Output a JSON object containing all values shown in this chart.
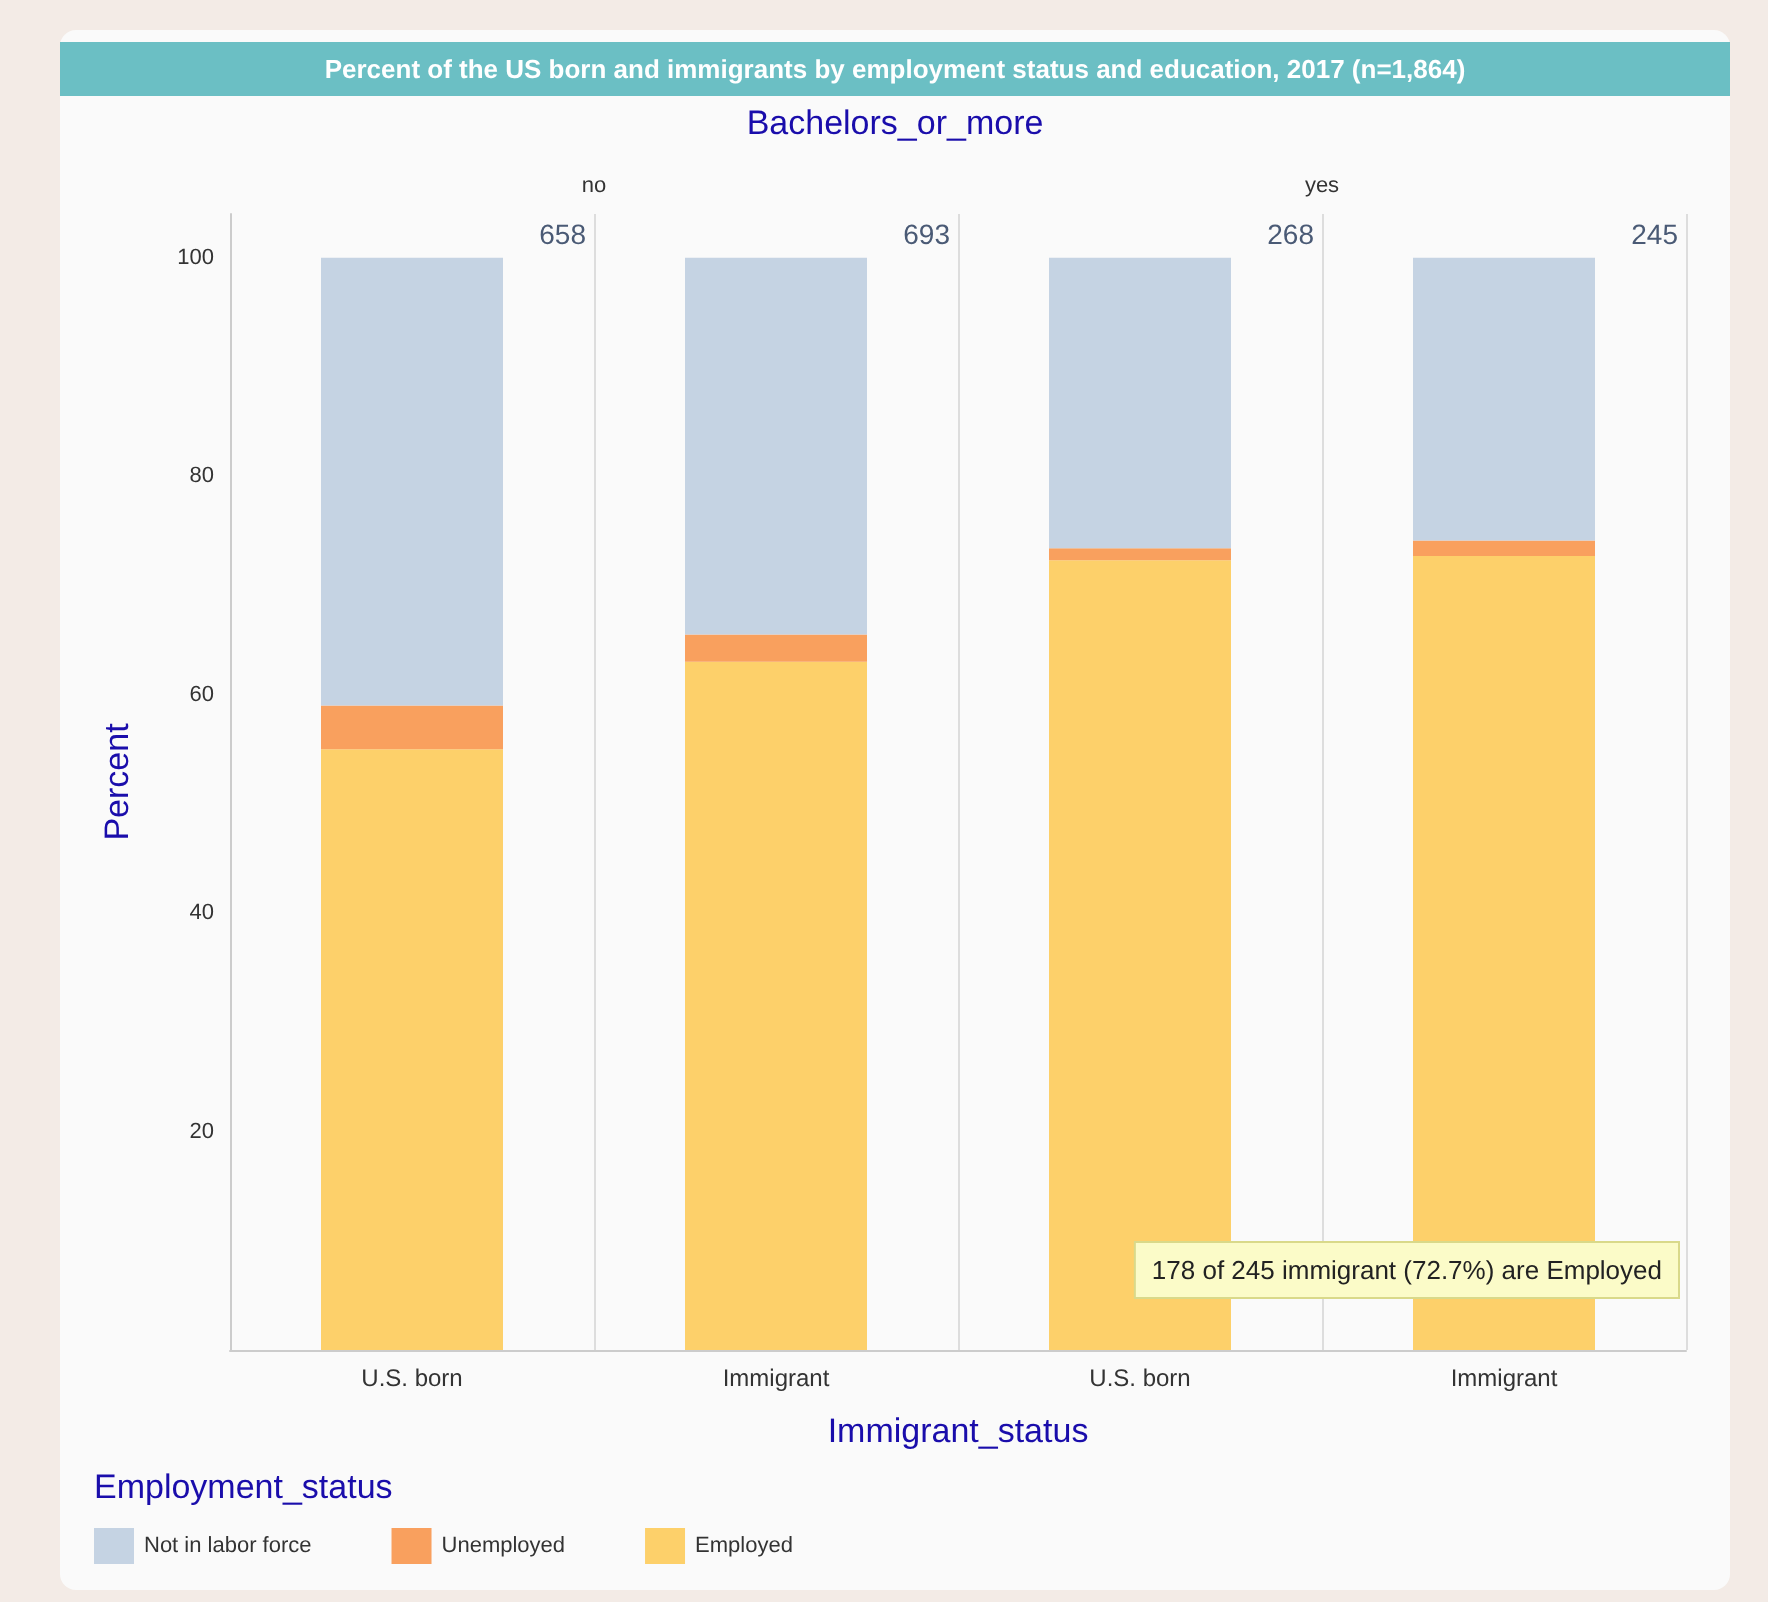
{
  "chart_data": {
    "type": "bar",
    "title": "Percent of the US born and immigrants by employment status and education, 2017 (n=1,864)",
    "subtitle": "Bachelors_or_more",
    "xlabel": "Immigrant_status",
    "ylabel": "Percent",
    "legend_title": "Employment_status",
    "categories": [
      "U.S. born",
      "Immigrant",
      "U.S. born",
      "Immigrant"
    ],
    "stacked": true,
    "series": [
      {
        "name": "Employed",
        "color": "#fdd06a",
        "values": [
          55,
          63,
          72.3,
          72.7
        ]
      },
      {
        "name": "Unemployed",
        "color": "#f9a05e",
        "values": [
          4,
          2.5,
          1.1,
          1.4
        ]
      },
      {
        "name": "Not in labor force",
        "color": "#c5d3e3",
        "values": [
          41,
          34.5,
          26.6,
          25.9
        ]
      }
    ],
    "ylim": [
      0,
      104
    ],
    "yticks": [
      20,
      40,
      60,
      80,
      100
    ],
    "grid": "x",
    "legend": "bottom left",
    "annotations": [
      "no",
      "yes",
      "658",
      "693",
      "268",
      "245",
      "178 of 245 immigrant (72.7%) are Employed"
    ]
  }
}
